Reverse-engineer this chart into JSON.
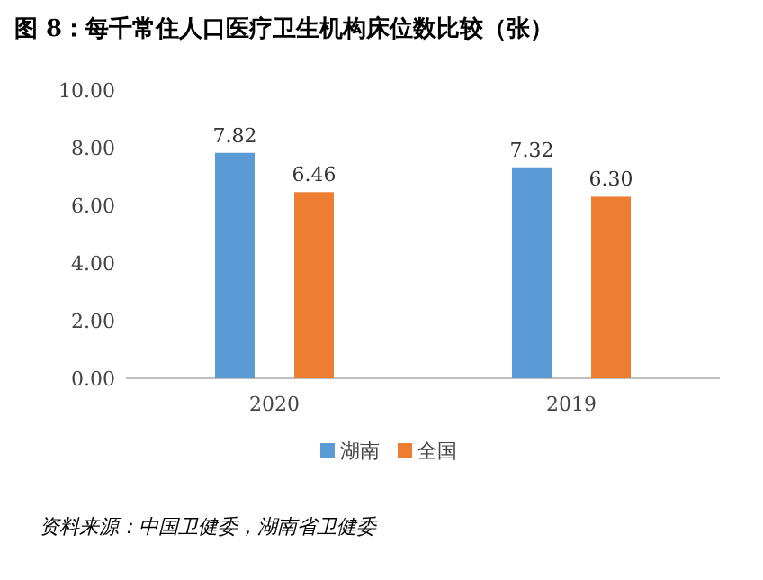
{
  "chart_data": {
    "type": "bar",
    "title": "图 8：每千常住人口医疗卫生机构床位数比较（张）",
    "categories": [
      "2020",
      "2019"
    ],
    "series": [
      {
        "name": "湖南",
        "color": "#5b9bd5",
        "values": [
          7.82,
          7.32
        ]
      },
      {
        "name": "全国",
        "color": "#ed7d31",
        "values": [
          6.46,
          6.3
        ]
      }
    ],
    "ylim": [
      0,
      10
    ],
    "yticks": [
      {
        "value": 0,
        "label": "0.00"
      },
      {
        "value": 2,
        "label": "2.00"
      },
      {
        "value": 4,
        "label": "4.00"
      },
      {
        "value": 6,
        "label": "6.00"
      },
      {
        "value": 8,
        "label": "8.00"
      },
      {
        "value": 10,
        "label": "10.00"
      }
    ],
    "value_labels": [
      [
        "7.82",
        "7.32"
      ],
      [
        "6.46",
        "6.30"
      ]
    ],
    "legend": "bottom",
    "annotations": [
      "资料来源：中国卫健委，湖南省卫健委"
    ]
  }
}
